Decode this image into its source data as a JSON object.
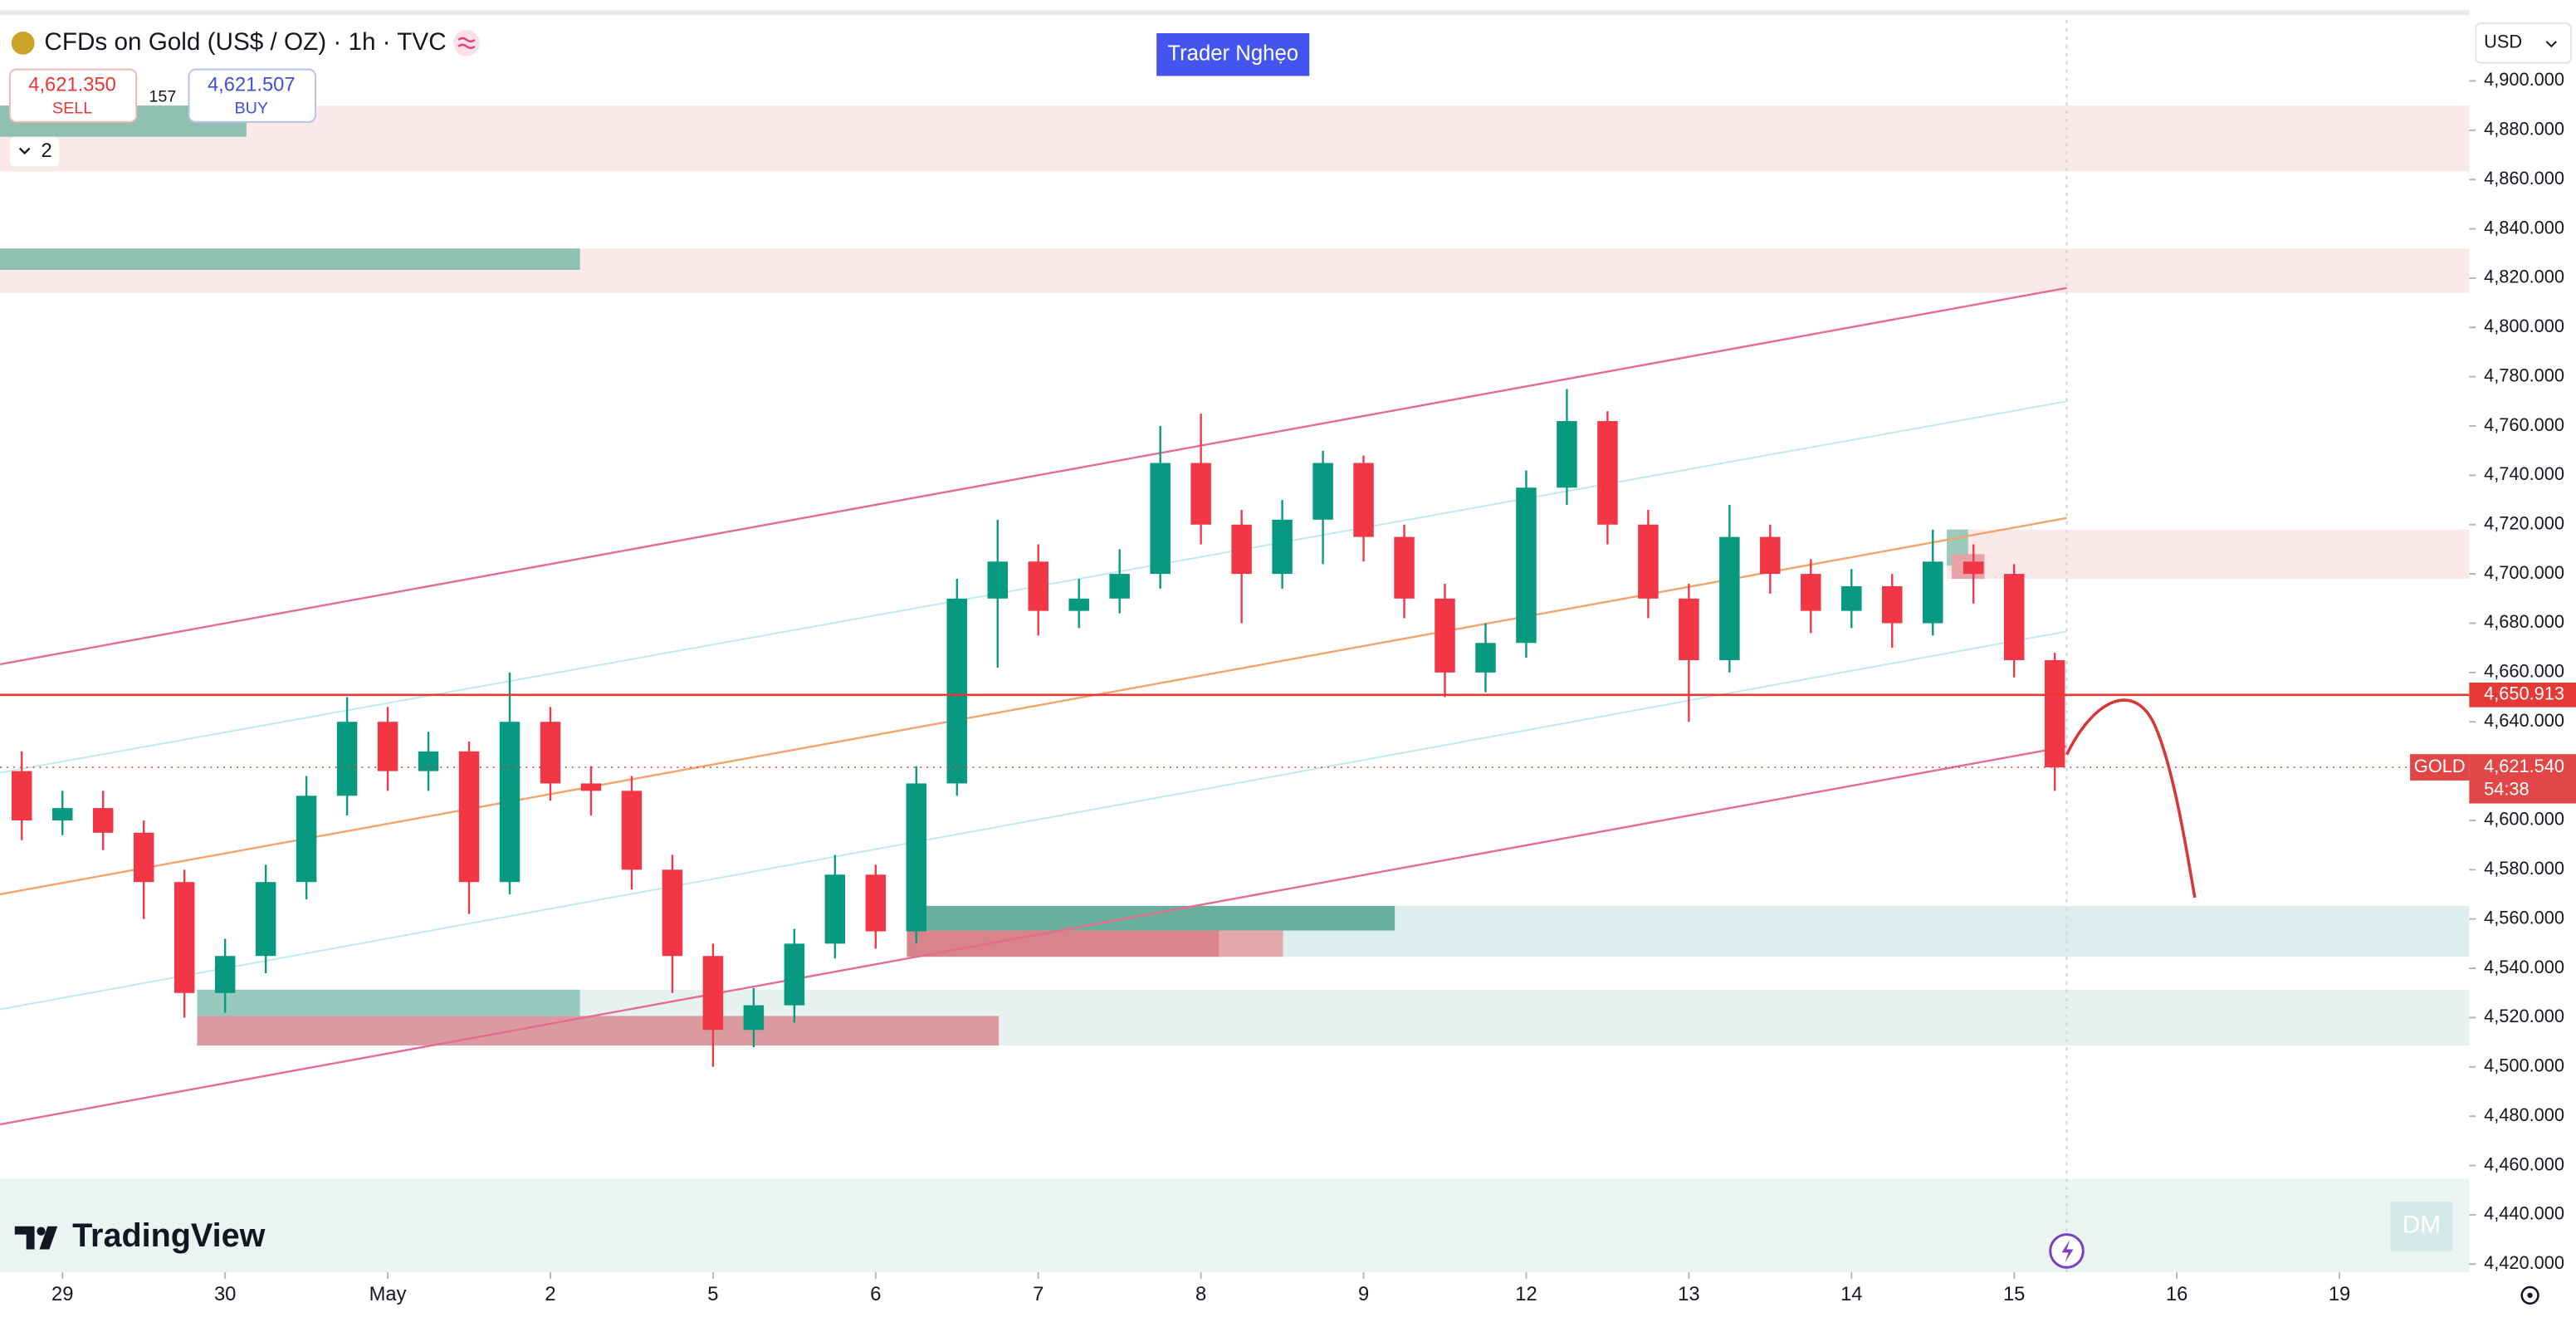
{
  "header": {
    "title": "CFDs on Gold (US$ / OZ) · 1h · TVC",
    "sell": "4,621.350",
    "sell_text": "SELL",
    "spread": 157,
    "buy": "4,621.507",
    "buy_text": "BUY",
    "indicator_count": 2,
    "badge": "Trader Nghẹo",
    "currency": "USD",
    "logo": "TradingView",
    "watermark": "DM"
  },
  "chart_data": {
    "type": "candlestick",
    "x": [
      -0.25,
      0,
      0.25,
      0.5,
      0.75,
      1,
      1.25,
      1.5,
      1.75,
      2,
      2.25,
      2.5,
      2.75,
      3,
      3.25,
      3.5,
      3.75,
      4,
      4.25,
      4.5,
      4.75,
      5,
      5.25,
      5.5,
      5.75,
      6,
      6.25,
      6.5,
      6.75,
      7,
      7.25,
      7.5,
      7.75,
      8,
      8.25,
      8.5,
      8.75,
      9,
      9.25,
      9.5,
      9.75,
      10,
      10.25,
      10.5,
      10.75,
      11,
      11.25,
      11.5,
      11.75,
      12,
      12.25
    ],
    "open": [
      4620,
      4600,
      4605,
      4595,
      4575,
      4530,
      4545,
      4575,
      4610,
      4640,
      4620,
      4628,
      4575,
      4640,
      4615,
      4612,
      4580,
      4545,
      4515,
      4525,
      4550,
      4578,
      4555,
      4615,
      4690,
      4705,
      4685,
      4690,
      4700,
      4745,
      4720,
      4700,
      4722,
      4745,
      4715,
      4690,
      4660,
      4672,
      4735,
      4762,
      4720,
      4690,
      4665,
      4715,
      4700,
      4685,
      4695,
      4680,
      4705,
      4700,
      4665
    ],
    "high": [
      4628,
      4612,
      4612,
      4600,
      4580,
      4552,
      4582,
      4618,
      4650,
      4646,
      4636,
      4632,
      4660,
      4646,
      4622,
      4618,
      4586,
      4550,
      4532,
      4556,
      4586,
      4582,
      4622,
      4698,
      4722,
      4712,
      4698,
      4710,
      4760,
      4765,
      4726,
      4730,
      4750,
      4748,
      4720,
      4696,
      4680,
      4742,
      4775,
      4766,
      4726,
      4696,
      4728,
      4720,
      4706,
      4702,
      4700,
      4718,
      4712,
      4704,
      4668
    ],
    "low": [
      4592,
      4594,
      4588,
      4560,
      4520,
      4522,
      4538,
      4568,
      4602,
      4612,
      4612,
      4562,
      4570,
      4608,
      4602,
      4572,
      4530,
      4500,
      4508,
      4518,
      4544,
      4548,
      4550,
      4610,
      4662,
      4675,
      4678,
      4684,
      4694,
      4712,
      4680,
      4694,
      4704,
      4705,
      4682,
      4650,
      4652,
      4666,
      4728,
      4712,
      4682,
      4640,
      4660,
      4692,
      4676,
      4678,
      4670,
      4675,
      4688,
      4658,
      4612
    ],
    "close": [
      4600,
      4605,
      4595,
      4575,
      4530,
      4545,
      4575,
      4610,
      4640,
      4620,
      4628,
      4575,
      4640,
      4615,
      4612,
      4580,
      4545,
      4515,
      4525,
      4550,
      4578,
      4555,
      4615,
      4690,
      4705,
      4685,
      4690,
      4700,
      4745,
      4720,
      4700,
      4722,
      4745,
      4715,
      4690,
      4660,
      4672,
      4735,
      4762,
      4720,
      4690,
      4665,
      4715,
      4700,
      4685,
      4695,
      4680,
      4705,
      4700,
      4665,
      4621.54
    ],
    "up_color": "#089981",
    "down_color": "#f23645",
    "xlim": [
      -0.384,
      14.798
    ],
    "xticks": [
      {
        "value": 0,
        "label": "29"
      },
      {
        "value": 1,
        "label": "30"
      },
      {
        "value": 2,
        "label": "May"
      },
      {
        "value": 3,
        "label": "2"
      },
      {
        "value": 4,
        "label": "5"
      },
      {
        "value": 5,
        "label": "6"
      },
      {
        "value": 6,
        "label": "7"
      },
      {
        "value": 7,
        "label": "8"
      },
      {
        "value": 8,
        "label": "9"
      },
      {
        "value": 9,
        "label": "12"
      },
      {
        "value": 10,
        "label": "13"
      },
      {
        "value": 11,
        "label": "14"
      },
      {
        "value": 12,
        "label": "15"
      },
      {
        "value": 13,
        "label": "16"
      },
      {
        "value": 14,
        "label": "19"
      }
    ],
    "ylim": [
      4416.67,
      4924.67
    ],
    "yticks": [
      {
        "value": 4420,
        "label": "4,420.000"
      },
      {
        "value": 4440,
        "label": "4,440.000"
      },
      {
        "value": 4460,
        "label": "4,460.000"
      },
      {
        "value": 4480,
        "label": "4,480.000"
      },
      {
        "value": 4500,
        "label": "4,500.000"
      },
      {
        "value": 4520,
        "label": "4,520.000"
      },
      {
        "value": 4540,
        "label": "4,540.000"
      },
      {
        "value": 4560,
        "label": "4,560.000"
      },
      {
        "value": 4580,
        "label": "4,580.000"
      },
      {
        "value": 4600,
        "label": "4,600.000"
      },
      {
        "value": 4620,
        "label": "4,620.000"
      },
      {
        "value": 4640,
        "label": "4,640.000"
      },
      {
        "value": 4660,
        "label": "4,660.000"
      },
      {
        "value": 4680,
        "label": "4,680.000"
      },
      {
        "value": 4700,
        "label": "4,700.000"
      },
      {
        "value": 4720,
        "label": "4,720.000"
      },
      {
        "value": 4740,
        "label": "4,740.000"
      },
      {
        "value": 4760,
        "label": "4,760.000"
      },
      {
        "value": 4780,
        "label": "4,780.000"
      },
      {
        "value": 4800,
        "label": "4,800.000"
      },
      {
        "value": 4820,
        "label": "4,820.000"
      },
      {
        "value": 4840,
        "label": "4,840.000"
      },
      {
        "value": 4860,
        "label": "4,860.000"
      },
      {
        "value": 4880,
        "label": "4,880.000"
      },
      {
        "value": 4900,
        "label": "4,900.000"
      }
    ],
    "hline": {
      "value": 4650.913,
      "label": "4,650.913",
      "color": "#e53935"
    },
    "last_price": {
      "value": 4621.54,
      "label": "4,621.540",
      "symbol": "GOLD",
      "countdown": "54:38",
      "color": "#e04646"
    }
  }
}
